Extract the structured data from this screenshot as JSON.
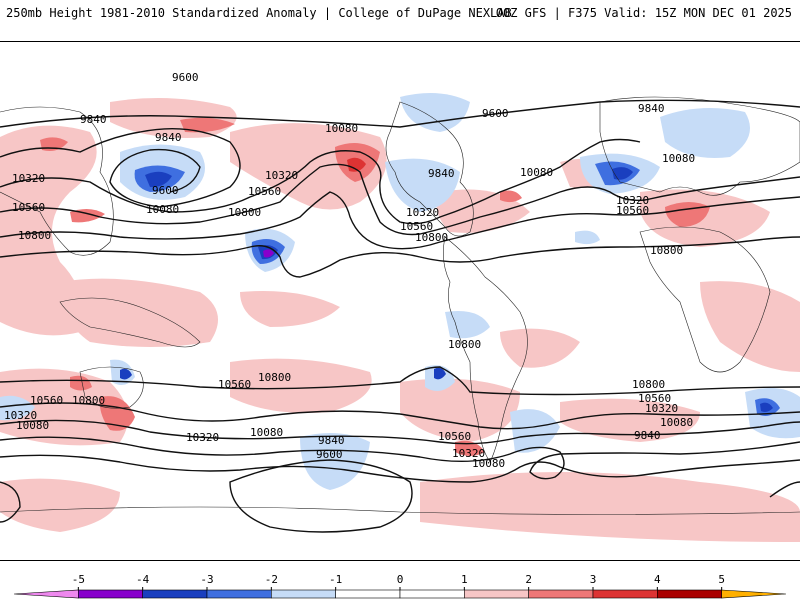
{
  "header": {
    "title": "250mb Height 1981-2010 Standardized Anomaly | College of DuPage NEXLAB",
    "run": "00Z GFS | F375 Valid: 15Z MON DEC 01 2025"
  },
  "colors": {
    "neg5": "#ee88ee",
    "neg4": "#8800cc",
    "neg3": "#1a3fbf",
    "neg2": "#3f6fe0",
    "neg1": "#c6dcf7",
    "pos1": "#f7c6c6",
    "pos2": "#ee7777",
    "pos3": "#dd3333",
    "pos4": "#aa0000",
    "pos5": "#ffb000",
    "contour": "#111111"
  },
  "colorbar": {
    "ticks": [
      "-5",
      "-4",
      "-3",
      "-2",
      "-1",
      "0",
      "1",
      "2",
      "3",
      "4",
      "5"
    ]
  },
  "contour_labels": [
    "9600",
    "9840",
    "9840",
    "9600",
    "10080",
    "10320",
    "10560",
    "10800",
    "10080",
    "10320",
    "10560",
    "10800",
    "9840",
    "9600",
    "10080",
    "10320",
    "10560",
    "9840",
    "10080",
    "10320",
    "10560",
    "10800",
    "10800",
    "10800",
    "10800",
    "10560",
    "10800",
    "10560",
    "10320",
    "10080",
    "10320",
    "10080",
    "9840",
    "9600",
    "10560",
    "10320",
    "10080",
    "10800",
    "10560",
    "10320",
    "10080",
    "9840"
  ]
}
